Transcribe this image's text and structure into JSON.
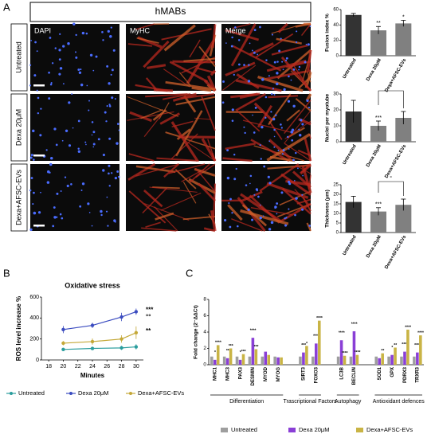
{
  "panel_labels": [
    "A",
    "B",
    "C"
  ],
  "microscopy": {
    "title": "hMABs",
    "rows": [
      "Untreated",
      "Dexa 20μM",
      "Dexa+AFSC-EVs"
    ],
    "columns": [
      "DAPI",
      "MyHC",
      "Merge"
    ]
  },
  "chart_data": [
    {
      "type": "bar",
      "ylabel": "Fusion index %",
      "categories": [
        "Untreated",
        "Dexa 20μM",
        "Dexa+AFSC-EVs"
      ],
      "values": [
        53,
        33,
        42
      ],
      "errors": [
        2,
        5,
        4
      ],
      "colors": [
        "#333333",
        "#808080",
        "#808080"
      ],
      "ylim": [
        0,
        60
      ],
      "yticks": [
        0,
        20,
        40,
        60
      ],
      "significance": [
        null,
        "**",
        "*"
      ]
    },
    {
      "type": "bar",
      "ylabel": "Nuclei per myotube",
      "categories": [
        "Untreated",
        "Dexa 20μM",
        "Dexa+AFSC-EVs"
      ],
      "values": [
        19,
        10,
        15
      ],
      "errors": [
        7,
        3,
        4
      ],
      "colors": [
        "#333333",
        "#808080",
        "#808080"
      ],
      "ylim": [
        0,
        30
      ],
      "yticks": [
        0,
        10,
        20,
        30
      ],
      "significance": [
        null,
        "***",
        null
      ],
      "bracket_label": "°"
    },
    {
      "type": "bar",
      "ylabel": "Thickness (μm)",
      "categories": [
        "Untreated",
        "Dexa 20μM",
        "Dexa+AFSC-EVs"
      ],
      "values": [
        16,
        11,
        14.5
      ],
      "errors": [
        3,
        2,
        3
      ],
      "colors": [
        "#333333",
        "#808080",
        "#808080"
      ],
      "ylim": [
        0,
        25
      ],
      "yticks": [
        0,
        5,
        10,
        15,
        20,
        25
      ],
      "significance": [
        null,
        "***",
        null
      ],
      "bracket_label": "°"
    },
    {
      "type": "line",
      "title": "Oxidative stress",
      "xlabel": "Minutes",
      "ylabel": "ROS level increase %",
      "x": [
        20,
        24,
        28,
        30
      ],
      "xlim": [
        17,
        31
      ],
      "xticks": [
        18,
        20,
        22,
        24,
        26,
        28,
        30
      ],
      "ylim": [
        0,
        600
      ],
      "yticks": [
        0,
        200,
        400,
        600
      ],
      "legend": "bottom",
      "series": [
        {
          "name": "Untreated",
          "color": "#2a9d9d",
          "values": [
            100,
            110,
            115,
            125
          ],
          "errors": [
            15,
            15,
            20,
            25
          ]
        },
        {
          "name": "Dexa 20μM",
          "color": "#3b4cc0",
          "values": [
            290,
            330,
            410,
            460
          ],
          "errors": [
            35,
            25,
            40,
            30
          ],
          "significance": [
            "***",
            "°°"
          ]
        },
        {
          "name": "Dexa+AFSC-EVs",
          "color": "#c4a838",
          "values": [
            160,
            175,
            200,
            260
          ],
          "errors": [
            20,
            30,
            35,
            60
          ],
          "significance": [
            "**"
          ]
        }
      ]
    },
    {
      "type": "groupedbar",
      "ylabel": "Fold change (2⁻ΔΔCt)",
      "ylim": [
        0,
        8
      ],
      "yticks": [
        0,
        2,
        4,
        6,
        8
      ],
      "legend": "bottom",
      "groups": [
        {
          "label": "Differentiation",
          "categories": [
            "MHC1",
            "MHC3",
            "PAX3",
            "DESMIN",
            "MYOD",
            "MYOG"
          ]
        },
        {
          "label": "Trascriptional Factors",
          "categories": [
            "SIRT3",
            "FOXO3"
          ]
        },
        {
          "label": "Autophagy",
          "categories": [
            "LC3B",
            "BECLIN"
          ]
        },
        {
          "label": "Antioxidant defences",
          "categories": [
            "SOD1",
            "GPX",
            "PDRX3",
            "TRXR3"
          ]
        }
      ],
      "series": [
        {
          "name": "Untreated",
          "color": "#9e9e9e",
          "values": [
            1,
            1,
            1,
            1,
            1,
            1,
            1,
            1,
            1,
            1,
            1,
            1,
            1,
            1
          ]
        },
        {
          "name": "Dexa 20μM",
          "color": "#8a3fd6",
          "values": [
            0.6,
            0.8,
            0.6,
            3.3,
            1.6,
            0.9,
            1.5,
            2.6,
            3.0,
            4.1,
            0.8,
            1.2,
            1.6,
            1.5
          ],
          "significance": [
            "*",
            "**",
            "*",
            "****",
            null,
            null,
            "***",
            "****",
            "****",
            "****",
            null,
            "*",
            "****",
            "****"
          ]
        },
        {
          "name": "Dexa+AFSC-EVs",
          "color": "#c9b445",
          "values": [
            2.4,
            2.0,
            1.3,
            1.9,
            1.2,
            0.9,
            2.3,
            5.4,
            1.1,
            1.2,
            1.4,
            2.1,
            4.3,
            3.6
          ],
          "significance": [
            "****",
            "***",
            "***",
            "***",
            null,
            null,
            "*",
            "****",
            "****",
            "****",
            "**",
            "**",
            "****",
            "****"
          ]
        }
      ]
    }
  ]
}
